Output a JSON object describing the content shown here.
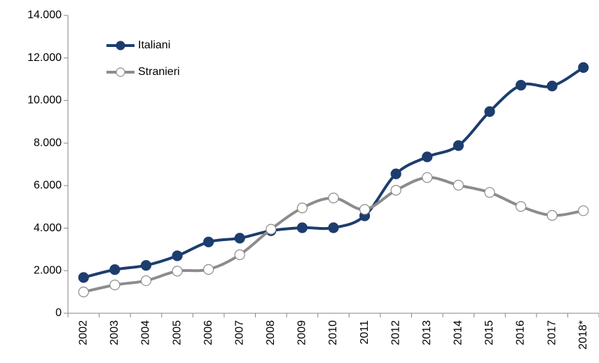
{
  "chart_data": {
    "type": "line",
    "categories": [
      "2002",
      "2003",
      "2004",
      "2005",
      "2006",
      "2007",
      "2008",
      "2009",
      "2010",
      "2011",
      "2012",
      "2013",
      "2014",
      "2015",
      "2016",
      "2017",
      "2018*"
    ],
    "series": [
      {
        "name": "Italiani",
        "color": "#1d3d6e",
        "marker_fill": "#1d3d6e",
        "values": [
          1680,
          2050,
          2250,
          2700,
          3350,
          3530,
          3880,
          4020,
          4020,
          4580,
          6550,
          7350,
          7880,
          9480,
          10720,
          10680,
          11550
        ]
      },
      {
        "name": "Stranieri",
        "color": "#8c8c8c",
        "marker_fill": "#ffffff",
        "values": [
          1000,
          1330,
          1530,
          1980,
          2060,
          2750,
          3950,
          4950,
          5420,
          4880,
          5780,
          6380,
          6020,
          5680,
          5020,
          4600,
          4820
        ]
      }
    ],
    "ylim": [
      0,
      14000
    ],
    "yticks": [
      0,
      {
        "value": 2000,
        "label": "2.000"
      },
      {
        "value": 4000,
        "label": "4.000"
      },
      {
        "value": 6000,
        "label": "6.000"
      },
      {
        "value": 8000,
        "label": "8.000"
      },
      {
        "value": 10000,
        "label": "10.000"
      },
      {
        "value": 12000,
        "label": "12.000"
      },
      {
        "value": 14000,
        "label": "14.000"
      }
    ],
    "smooth": true,
    "grid": false,
    "legend": "top-left"
  }
}
